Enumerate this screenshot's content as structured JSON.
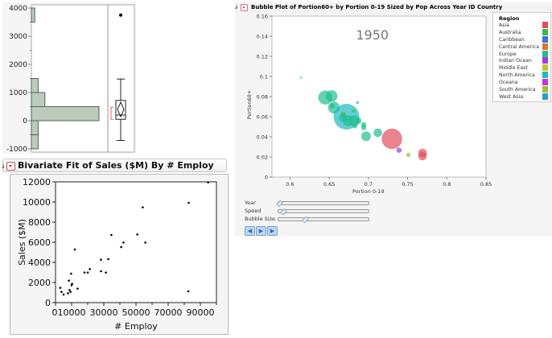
{
  "histogram": {
    "y_ticks": [
      "4000",
      "3000",
      "2000",
      "1000",
      "0",
      "-1000"
    ],
    "bins": [
      {
        "lo": -1000,
        "hi": -500,
        "count": 1
      },
      {
        "lo": -500,
        "hi": 0,
        "count": 1
      },
      {
        "lo": 0,
        "hi": 500,
        "count": 10
      },
      {
        "lo": 500,
        "hi": 1000,
        "count": 2
      },
      {
        "lo": 1000,
        "hi": 1500,
        "count": 1
      },
      {
        "lo": 3500,
        "hi": 4000,
        "count": 0.5
      }
    ],
    "box": {
      "whisker_low": -700,
      "q1": 50,
      "median": 200,
      "q3": 720,
      "whisker_high": 1480,
      "mean": 400,
      "outlier": 3750,
      "shortest_half": [
        50,
        480
      ]
    },
    "bar_color": "#bccbbc"
  },
  "bivariate": {
    "title": "Bivariate Fit of Sales ($M) By # Employ",
    "chart_data": {
      "type": "scatter",
      "xlabel": "# Employ",
      "ylabel": "Sales ($M)",
      "xlim": [
        0,
        100000
      ],
      "ylim": [
        0,
        12000
      ],
      "x_ticks": [
        "0",
        "10000",
        "30000",
        "50000",
        "70000",
        "90000"
      ],
      "y_ticks": [
        "0",
        "2000",
        "4000",
        "6000",
        "8000",
        "10000",
        "12000"
      ],
      "points": [
        [
          3000,
          1470
        ],
        [
          3700,
          1070
        ],
        [
          5000,
          800
        ],
        [
          7700,
          930
        ],
        [
          8300,
          2190
        ],
        [
          8700,
          1250
        ],
        [
          9300,
          1070
        ],
        [
          9700,
          2880
        ],
        [
          10000,
          1730
        ],
        [
          10300,
          1870
        ],
        [
          12000,
          5280
        ],
        [
          13700,
          1390
        ],
        [
          18000,
          2990
        ],
        [
          20000,
          2990
        ],
        [
          21300,
          3330
        ],
        [
          28200,
          4270
        ],
        [
          28300,
          3120
        ],
        [
          31300,
          2990
        ],
        [
          32800,
          4320
        ],
        [
          34700,
          6720
        ],
        [
          40800,
          5520
        ],
        [
          42200,
          5970
        ],
        [
          50800,
          6770
        ],
        [
          54200,
          9470
        ],
        [
          55800,
          5970
        ],
        [
          82500,
          1120
        ],
        [
          82800,
          9920
        ],
        [
          94800,
          11950
        ]
      ]
    }
  },
  "bubble": {
    "title": "Bubble Plot of Portion60+ by Portion 0-19 Sized by Pop Across Year ID Country",
    "year_label": "1950",
    "chart_data": {
      "type": "scatter",
      "xlabel": "Portion 0-19",
      "ylabel": "Portion60+",
      "xlim": [
        0.577,
        0.85
      ],
      "ylim": [
        0,
        0.16
      ],
      "x_ticks": [
        "0.6",
        "0.65",
        "0.7",
        "0.75",
        "0.8",
        "0.85"
      ],
      "y_ticks": [
        "0",
        "0.02",
        "0.04",
        "0.06",
        "0.08",
        "0.1",
        "0.12",
        "0.14",
        "0.16"
      ],
      "bubbles": [
        {
          "region": "Europe",
          "x": 0.614,
          "y": 0.099,
          "size": 1.3
        },
        {
          "region": "Europe",
          "x": 0.645,
          "y": 0.079,
          "size": 8.7
        },
        {
          "region": "Europe",
          "x": 0.653,
          "y": 0.0805,
          "size": 7.3
        },
        {
          "region": "Europe",
          "x": 0.656,
          "y": 0.069,
          "size": 7.3
        },
        {
          "region": "Europe",
          "x": 0.654,
          "y": 0.0705,
          "size": 3.3
        },
        {
          "region": "Europe",
          "x": 0.686,
          "y": 0.074,
          "size": 1.7
        },
        {
          "region": "Europe",
          "x": 0.667,
          "y": 0.0587,
          "size": 4.7
        },
        {
          "region": "North America",
          "x": 0.672,
          "y": 0.06,
          "size": 16
        },
        {
          "region": "Europe",
          "x": 0.674,
          "y": 0.056,
          "size": 6.7
        },
        {
          "region": "Europe",
          "x": 0.682,
          "y": 0.056,
          "size": 6.7
        },
        {
          "region": "Europe",
          "x": 0.687,
          "y": 0.056,
          "size": 4
        },
        {
          "region": "Europe",
          "x": 0.683,
          "y": 0.0507,
          "size": 3
        },
        {
          "region": "Europe",
          "x": 0.694,
          "y": 0.052,
          "size": 3.3
        },
        {
          "region": "Europe",
          "x": 0.694,
          "y": 0.0493,
          "size": 3.3
        },
        {
          "region": "Europe",
          "x": 0.697,
          "y": 0.0405,
          "size": 6
        },
        {
          "region": "Europe",
          "x": 0.712,
          "y": 0.044,
          "size": 5.3
        },
        {
          "region": "Australia",
          "x": 0.668,
          "y": 0.062,
          "size": 3.3
        },
        {
          "region": "Australia",
          "x": 0.681,
          "y": 0.0656,
          "size": 1.7
        },
        {
          "region": "Asia",
          "x": 0.73,
          "y": 0.038,
          "size": 12.7
        },
        {
          "region": "Asia",
          "x": 0.769,
          "y": 0.024,
          "size": 5.3
        },
        {
          "region": "Asia",
          "x": 0.769,
          "y": 0.0208,
          "size": 5.3
        },
        {
          "region": "Indian Ocean",
          "x": 0.739,
          "y": 0.0267,
          "size": 3.3
        },
        {
          "region": "South America",
          "x": 0.751,
          "y": 0.022,
          "size": 2.7
        }
      ]
    },
    "legend": {
      "title": "Region",
      "items": [
        {
          "label": "Asia",
          "color": "#e0505f"
        },
        {
          "label": "Australia",
          "color": "#3cb54a"
        },
        {
          "label": "Caribbean",
          "color": "#3a6fe0"
        },
        {
          "label": "Central America",
          "color": "#d9772a"
        },
        {
          "label": "Europe",
          "color": "#20bf8f"
        },
        {
          "label": "Indian Ocean",
          "color": "#a43be0"
        },
        {
          "label": "Middle East",
          "color": "#c9c42a"
        },
        {
          "label": "North America",
          "color": "#20b8c0"
        },
        {
          "label": "Oceana",
          "color": "#d030d0"
        },
        {
          "label": "South America",
          "color": "#9cc030"
        },
        {
          "label": "West Asia",
          "color": "#2a9ad0"
        }
      ]
    },
    "controls": {
      "year": "Year",
      "speed": "Speed",
      "bubble_size": "Bubble Size",
      "year_value": 0,
      "speed_value": 0.05,
      "bubble_size_value": 0.3,
      "buttons": [
        {
          "icon": "step-back-icon",
          "glyph": "◀"
        },
        {
          "icon": "play-icon",
          "glyph": "▶"
        },
        {
          "icon": "step-forward-icon",
          "glyph": "▶"
        }
      ]
    }
  }
}
